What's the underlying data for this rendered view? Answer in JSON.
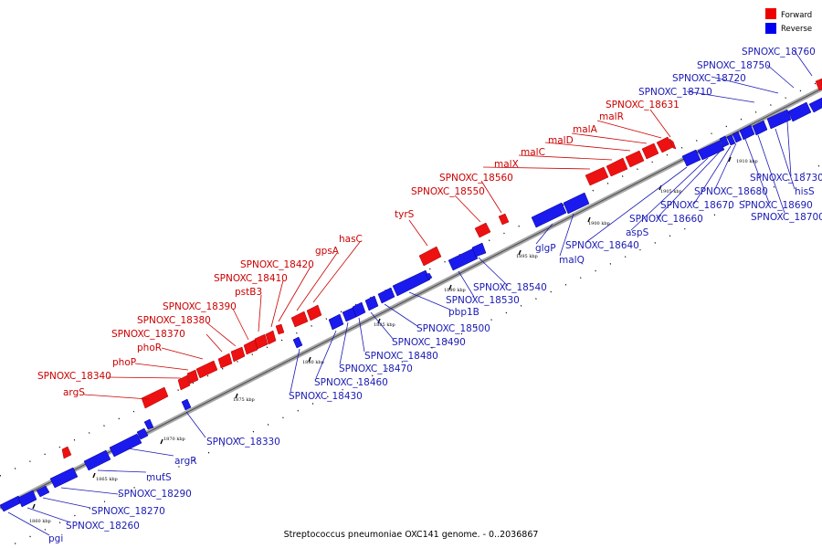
{
  "caption": "Streptococcus pneumoniae OXC141 genome. - 0..2036867",
  "legend": [
    {
      "label": "Forward",
      "color": "#ee0000"
    },
    {
      "label": "Reverse",
      "color": "#0000ee"
    }
  ],
  "colors": {
    "forward": "#ee0000",
    "reverse": "#1a1aee",
    "forward_label": "#cc0000",
    "reverse_label": "#1a1ab5",
    "backbone": "#a8a8a8"
  },
  "ticks": [
    "1860 kbp",
    "1865 kbp",
    "1870 kbp",
    "1875 kbp",
    "1880 kbp",
    "1885 kbp",
    "1890 kbp",
    "1895 kbp",
    "1900 kbp",
    "1905 kbp",
    "1910 kbp"
  ],
  "forward_labels": [
    "argS",
    "SPNOXC_18340",
    "phoP",
    "phoR",
    "SPNOXC_18370",
    "SPNOXC_18380",
    "SPNOXC_18390",
    "pstB3",
    "SPNOXC_18410",
    "SPNOXC_18420",
    "gpsA",
    "hasC",
    "tyrS",
    "SPNOXC_18550",
    "SPNOXC_18560",
    "malX",
    "malC",
    "malD",
    "malA",
    "malR",
    "SPNOXC_18631"
  ],
  "reverse_labels": [
    "pgi",
    "SPNOXC_18260",
    "SPNOXC_18270",
    "SPNOXC_18290",
    "mutS",
    "argR",
    "SPNOXC_18330",
    "SPNOXC_18430",
    "SPNOXC_18460",
    "SPNOXC_18470",
    "SPNOXC_18480",
    "SPNOXC_18490",
    "SPNOXC_18500",
    "pbp1B",
    "SPNOXC_18530",
    "SPNOXC_18540",
    "glgP",
    "malQ",
    "SPNOXC_18640",
    "aspS",
    "SPNOXC_18660",
    "SPNOXC_18670",
    "SPNOXC_18680",
    "SPNOXC_18690",
    "SPNOXC_18700",
    "hisS",
    "SPNOXC_18730",
    "SPNOXC_18710",
    "SPNOXC_18720",
    "SPNOXC_18750",
    "SPNOXC_18760"
  ]
}
